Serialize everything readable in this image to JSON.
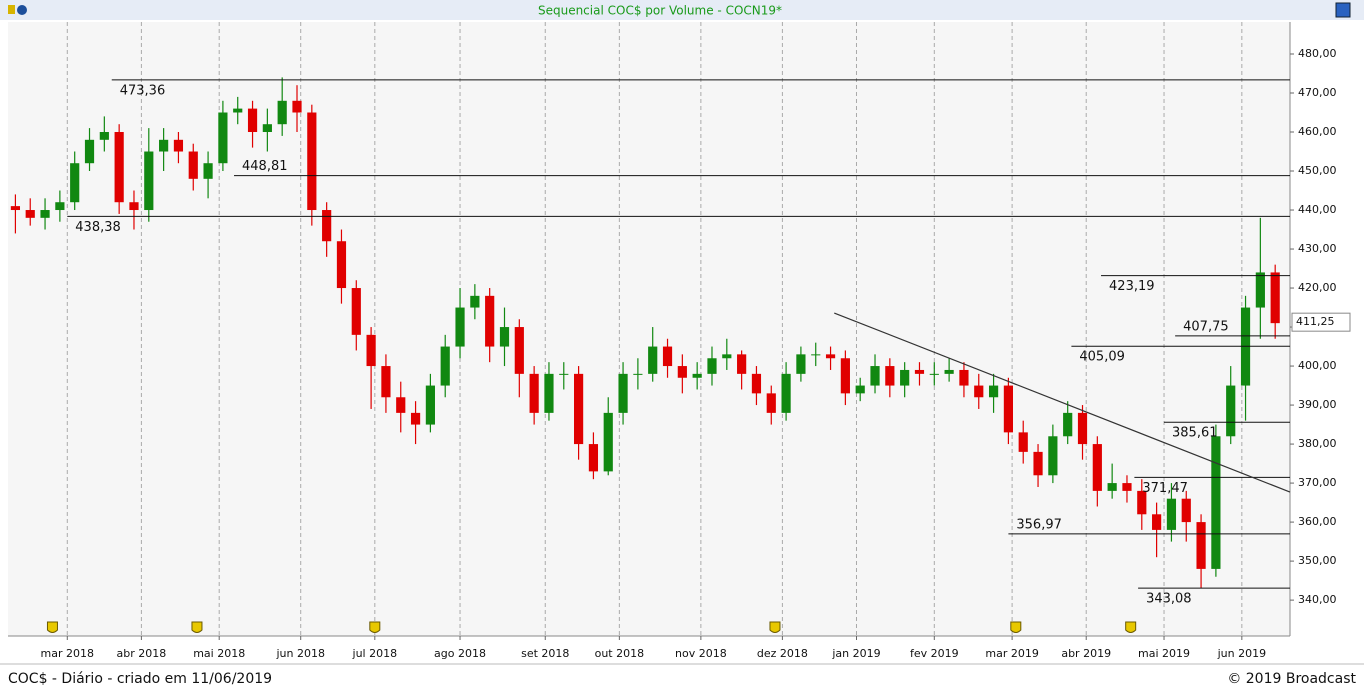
{
  "chart_data": {
    "type": "candlestick",
    "title": "Sequencial COC$ por Volume - COCN19*",
    "footer_left": "COC$ - Diário - criado em 11/06/2019",
    "footer_right": "© 2019 Broadcast",
    "x": [
      0,
      4,
      8,
      12,
      16,
      20,
      24,
      28,
      32,
      36,
      40,
      44,
      48,
      52,
      56,
      60,
      64,
      68,
      72,
      76,
      80,
      84,
      88,
      92,
      96,
      100,
      104,
      108,
      112,
      116,
      120,
      124,
      128,
      132,
      136,
      140,
      144,
      148,
      152,
      156,
      160,
      164,
      168,
      172,
      176,
      180,
      184,
      188,
      192,
      196,
      200,
      204,
      208,
      212,
      216,
      220,
      224,
      228,
      232,
      236,
      240,
      244,
      248,
      252,
      256,
      260,
      264,
      268,
      272,
      276,
      280,
      284,
      288,
      292,
      296,
      300,
      304,
      308,
      312,
      316,
      320,
      324,
      328,
      332,
      336,
      340
    ],
    "open": [
      441,
      440,
      438,
      440,
      442,
      452,
      458,
      460,
      442,
      440,
      455,
      458,
      455,
      448,
      452,
      465,
      466,
      460,
      462,
      468,
      465,
      440,
      432,
      420,
      408,
      400,
      392,
      388,
      385,
      395,
      405,
      415,
      418,
      405,
      410,
      398,
      388,
      398,
      398,
      380,
      373,
      388,
      398,
      398,
      405,
      400,
      397,
      398,
      402,
      403,
      398,
      393,
      388,
      398,
      403,
      403,
      402,
      393,
      395,
      400,
      395,
      399,
      398,
      398,
      399,
      395,
      392,
      395,
      383,
      378,
      372,
      382,
      388,
      380,
      368,
      370,
      368,
      362,
      358,
      366,
      360,
      348,
      382,
      395,
      415,
      424
    ],
    "high": [
      444,
      443,
      443,
      445,
      455,
      461,
      464,
      462,
      445,
      461,
      461,
      460,
      457,
      455,
      468,
      469,
      468,
      466,
      474,
      472,
      467,
      442,
      435,
      422,
      410,
      403,
      396,
      391,
      398,
      408,
      420,
      421,
      420,
      415,
      412,
      400,
      401,
      401,
      400,
      383,
      392,
      401,
      402,
      410,
      407,
      403,
      401,
      405,
      407,
      404,
      400,
      395,
      401,
      405,
      406,
      405,
      404,
      397,
      403,
      402,
      401,
      401,
      401,
      402,
      401,
      398,
      398,
      397,
      386,
      380,
      385,
      391,
      390,
      382,
      375,
      372,
      371,
      365,
      370,
      368,
      362,
      385,
      400,
      418,
      438,
      426
    ],
    "low": [
      434,
      436,
      435,
      437,
      440,
      450,
      455,
      439,
      435,
      437,
      450,
      452,
      445,
      443,
      450,
      462,
      456,
      455,
      459,
      460,
      436,
      428,
      416,
      404,
      389,
      388,
      383,
      380,
      383,
      392,
      402,
      412,
      401,
      400,
      392,
      385,
      386,
      394,
      376,
      371,
      372,
      385,
      394,
      396,
      397,
      393,
      394,
      395,
      399,
      394,
      390,
      385,
      386,
      396,
      400,
      399,
      390,
      391,
      393,
      392,
      392,
      395,
      395,
      396,
      392,
      389,
      388,
      380,
      375,
      369,
      370,
      380,
      376,
      364,
      366,
      365,
      358,
      351,
      355,
      355,
      343,
      346,
      380,
      386,
      407,
      407
    ],
    "close": [
      440,
      438,
      440,
      442,
      452,
      458,
      460,
      442,
      440,
      455,
      458,
      455,
      448,
      452,
      465,
      466,
      460,
      462,
      468,
      465,
      440,
      432,
      420,
      408,
      400,
      392,
      388,
      385,
      395,
      405,
      415,
      418,
      405,
      410,
      398,
      388,
      398,
      398,
      380,
      373,
      388,
      398,
      398,
      405,
      400,
      397,
      398,
      402,
      403,
      398,
      393,
      388,
      398,
      403,
      403,
      402,
      393,
      395,
      400,
      395,
      399,
      398,
      398,
      399,
      395,
      392,
      395,
      383,
      378,
      372,
      382,
      388,
      380,
      368,
      370,
      368,
      362,
      358,
      366,
      360,
      348,
      382,
      395,
      415,
      424,
      411
    ],
    "up_color": "#118811",
    "down_color": "#e00000",
    "xlim": [
      -2,
      344
    ],
    "xticks": [
      {
        "value": 14,
        "label": "mar 2018"
      },
      {
        "value": 34,
        "label": "abr 2018"
      },
      {
        "value": 55,
        "label": "mai 2018"
      },
      {
        "value": 77,
        "label": "jun 2018"
      },
      {
        "value": 97,
        "label": "jul 2018"
      },
      {
        "value": 120,
        "label": "ago 2018"
      },
      {
        "value": 143,
        "label": "set 2018"
      },
      {
        "value": 163,
        "label": "out 2018"
      },
      {
        "value": 185,
        "label": "nov 2018"
      },
      {
        "value": 207,
        "label": "dez 2018"
      },
      {
        "value": 227,
        "label": "jan 2019"
      },
      {
        "value": 248,
        "label": "fev 2019"
      },
      {
        "value": 269,
        "label": "mar 2019"
      },
      {
        "value": 289,
        "label": "abr 2019"
      },
      {
        "value": 310,
        "label": "mai 2019"
      },
      {
        "value": 331,
        "label": "jun 2019"
      }
    ],
    "ylim": [
      330.8,
      488.2
    ],
    "yticks": [
      {
        "value": 340,
        "label": "340,00"
      },
      {
        "value": 350,
        "label": "350,00"
      },
      {
        "value": 360,
        "label": "360,00"
      },
      {
        "value": 370,
        "label": "370,00"
      },
      {
        "value": 380,
        "label": "380,00"
      },
      {
        "value": 390,
        "label": "390,00"
      },
      {
        "value": 400,
        "label": "400,00"
      },
      {
        "value": 410,
        "label": "410,00"
      },
      {
        "value": 420,
        "label": "420,00"
      },
      {
        "value": 430,
        "label": "430,00"
      },
      {
        "value": 440,
        "label": "440,00"
      },
      {
        "value": 450,
        "label": "450,00"
      },
      {
        "value": 460,
        "label": "460,00"
      },
      {
        "value": 470,
        "label": "470,00"
      },
      {
        "value": 480,
        "label": "480,00"
      }
    ],
    "grid": true,
    "levels": [
      {
        "value": 473.36,
        "label": "473,36",
        "x_start": 26,
        "label_pos": "below"
      },
      {
        "value": 448.81,
        "label": "448,81",
        "x_start": 59,
        "label_pos": "above"
      },
      {
        "value": 438.38,
        "label": "438,38",
        "x_start": 14,
        "label_pos": "below"
      },
      {
        "value": 423.19,
        "label": "423,19",
        "x_start": 293,
        "label_pos": "below"
      },
      {
        "value": 407.75,
        "label": "407,75",
        "x_start": 313,
        "label_pos": "above"
      },
      {
        "value": 405.09,
        "label": "405,09",
        "x_start": 285,
        "label_pos": "below"
      },
      {
        "value": 385.61,
        "label": "385,61",
        "x_start": 310,
        "label_pos": "below"
      },
      {
        "value": 371.47,
        "label": "371,47",
        "x_start": 302,
        "label_pos": "below"
      },
      {
        "value": 356.97,
        "label": "356,97",
        "x_start": 268,
        "label_pos": "above"
      },
      {
        "value": 343.08,
        "label": "343,08",
        "x_start": 303,
        "label_pos": "below"
      }
    ],
    "trendline": {
      "x": [
        221,
        344
      ],
      "y": [
        413.6,
        367.7
      ]
    },
    "last_price": {
      "value": 411.25,
      "label": "411,25"
    },
    "events_x": [
      10,
      49,
      97,
      205,
      270,
      301
    ]
  }
}
